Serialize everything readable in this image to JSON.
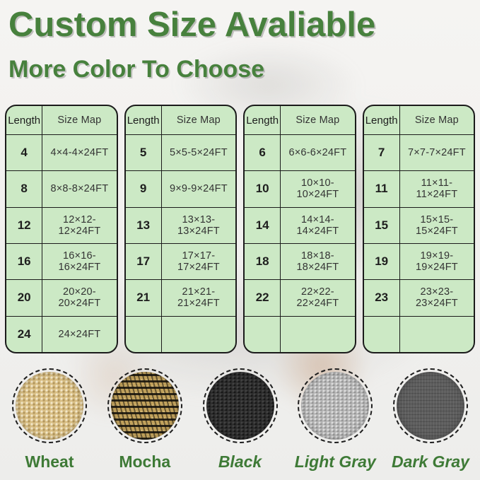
{
  "header": {
    "title": "Custom Size Avaliable",
    "subtitle": "More Color To Choose"
  },
  "tables": [
    {
      "columns": [
        "Length",
        "Size Map"
      ],
      "rows": [
        [
          "4",
          "4×4-4×24FT"
        ],
        [
          "8",
          "8×8-8×24FT"
        ],
        [
          "12",
          "12×12-12×24FT"
        ],
        [
          "16",
          "16×16-16×24FT"
        ],
        [
          "20",
          "20×20-20×24FT"
        ],
        [
          "24",
          "24×24FT"
        ]
      ]
    },
    {
      "columns": [
        "Length",
        "Size Map"
      ],
      "rows": [
        [
          "5",
          "5×5-5×24FT"
        ],
        [
          "9",
          "9×9-9×24FT"
        ],
        [
          "13",
          "13×13-13×24FT"
        ],
        [
          "17",
          "17×17-17×24FT"
        ],
        [
          "21",
          "21×21-21×24FT"
        ],
        [
          "",
          ""
        ]
      ]
    },
    {
      "columns": [
        "Length",
        "Size Map"
      ],
      "rows": [
        [
          "6",
          "6×6-6×24FT"
        ],
        [
          "10",
          "10×10-10×24FT"
        ],
        [
          "14",
          "14×14-14×24FT"
        ],
        [
          "18",
          "18×18-18×24FT"
        ],
        [
          "22",
          "22×22-22×24FT"
        ],
        [
          "",
          ""
        ]
      ]
    },
    {
      "columns": [
        "Length",
        "Size Map"
      ],
      "rows": [
        [
          "7",
          "7×7-7×24FT"
        ],
        [
          "11",
          "11×11-11×24FT"
        ],
        [
          "15",
          "15×15-15×24FT"
        ],
        [
          "19",
          "19×19-19×24FT"
        ],
        [
          "23",
          "23×23-23×24FT"
        ],
        [
          "",
          ""
        ]
      ]
    }
  ],
  "colors": [
    {
      "label": "Wheat",
      "swatch": "wheat",
      "hex": "#d9bf85",
      "italic": false
    },
    {
      "label": "Mocha",
      "swatch": "mocha",
      "hex": "#c2a25c",
      "italic": false
    },
    {
      "label": "Black",
      "swatch": "black",
      "hex": "#2d2d2d",
      "italic": true
    },
    {
      "label": "Light Gray",
      "swatch": "light-gray",
      "hex": "#b5b5b5",
      "italic": true
    },
    {
      "label": "Dark Gray",
      "swatch": "dark-gray",
      "hex": "#5d5d5d",
      "italic": true
    }
  ],
  "theme": {
    "accent_green": "#47813d",
    "table_green": "#cce9c5",
    "border_black": "#1b1b1b"
  }
}
